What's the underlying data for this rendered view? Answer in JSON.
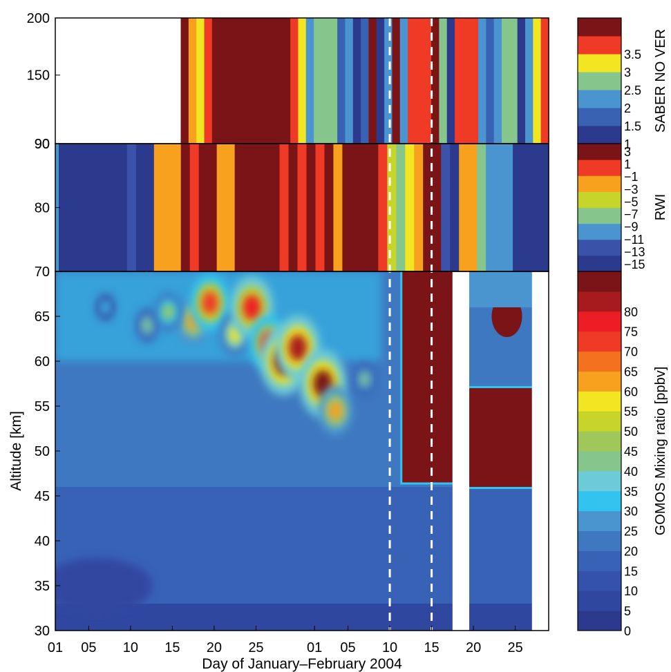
{
  "chart_data": [
    {
      "type": "heatmap",
      "panel": "top",
      "ylim": [
        90,
        200
      ],
      "yticks": [
        90,
        150,
        200
      ],
      "colorbar": {
        "title": "SABER NO VER",
        "range": [
          1,
          4
        ],
        "labels": [
          "1",
          "1.5",
          "2",
          "2.5",
          "3",
          "3.5"
        ],
        "colors": [
          "#2b3a8c",
          "#3a62b3",
          "#4a94d0",
          "#86c68c",
          "#f2e521",
          "#ef3b25",
          "#7b1416"
        ]
      },
      "data_start_day": 16,
      "stripe_colors": [
        "#7b1416",
        "#f7a11f",
        "#f2e521",
        "#ef3b25",
        "#7b1416",
        "#7b1416",
        "#7b1416",
        "#7b1416",
        "#7b1416",
        "#7b1416",
        "#7b1416",
        "#7b1416",
        "#7b1416",
        "#7b1416",
        "#ef3b25",
        "#f2e521",
        "#4a94d0",
        "#86c68c",
        "#86c68c",
        "#86c68c",
        "#3a62b3",
        "#4a94d0",
        "#2b3a8c",
        "#3a62b3",
        "#7b1416",
        "#2b3a8c",
        "#4a94d0",
        "#7b1416",
        "#4a94d0",
        "#ef3b25",
        "#ef3b25",
        "#ef3b25",
        "#7b1416",
        "#86c68c",
        "#2b3a8c",
        "#ef3b25",
        "#ef3b25",
        "#ef3b25",
        "#4a94d0",
        "#3a62b3",
        "#4a94d0",
        "#86c68c",
        "#86c68c",
        "#2b3a8c",
        "#4a94d0",
        "#f2e521",
        "#ef3b25"
      ]
    },
    {
      "type": "heatmap",
      "panel": "middle",
      "ylim": [
        70,
        90
      ],
      "yticks": [
        70,
        80,
        90
      ],
      "colorbar": {
        "title": "RWI",
        "range": [
          -15,
          3
        ],
        "labels": [
          "3",
          "1",
          "−1",
          "−3",
          "−5",
          "−7",
          "−9",
          "−11",
          "−13",
          "−15"
        ],
        "colors": [
          "#2b3a8c",
          "#3a52a8",
          "#4a94d0",
          "#86c68c",
          "#c7d52a",
          "#f7a11f",
          "#ef3b25",
          "#7b1416"
        ]
      },
      "stripe_colors": [
        "#2b3a8c",
        "#2b3a8c",
        "#2b3a8c",
        "#2b3a8c",
        "#2b3a8c",
        "#2b3a8c",
        "#2b3a8c",
        "#2b3a8c",
        "#3a52a8",
        "#2b3a8c",
        "#2b3a8c",
        "#f7a11f",
        "#f7a11f",
        "#f7a11f",
        "#7b1416",
        "#ef3b25",
        "#7b1416",
        "#7b1416",
        "#f7a11f",
        "#f7a11f",
        "#7b1416",
        "#7b1416",
        "#7b1416",
        "#7b1416",
        "#7b1416",
        "#ef3b25",
        "#7b1416",
        "#ef3b25",
        "#7b1416",
        "#ef3b25",
        "#7b1416",
        "#f7a11f",
        "#7b1416",
        "#7b1416",
        "#7b1416",
        "#7b1416",
        "#ef3b25",
        "#c7d52a",
        "#86c68c",
        "#f2e521",
        "#f7a11f",
        "#7b1416",
        "#7b1416",
        "#3a52a8",
        "#2b3a8c",
        "#f7a11f",
        "#f7a11f",
        "#86c68c",
        "#4a94d0",
        "#4a94d0",
        "#4a94d0",
        "#2b3a8c",
        "#2b3a8c",
        "#2b3a8c",
        "#2b3a8c"
      ]
    },
    {
      "type": "heatmap",
      "panel": "bottom",
      "xlabel": "Day of January–February 2004",
      "ylabel": "Altitude [km]",
      "xlim": [
        1,
        60
      ],
      "ylim": [
        30,
        70
      ],
      "xticks": [
        {
          "day": 1,
          "label": "01"
        },
        {
          "day": 5,
          "label": "05"
        },
        {
          "day": 10,
          "label": "10"
        },
        {
          "day": 15,
          "label": "15"
        },
        {
          "day": 20,
          "label": "20"
        },
        {
          "day": 25,
          "label": "25"
        },
        {
          "day": 32,
          "label": "01"
        },
        {
          "day": 36,
          "label": "05"
        },
        {
          "day": 41,
          "label": "10"
        },
        {
          "day": 46,
          "label": "15"
        },
        {
          "day": 51,
          "label": "20"
        },
        {
          "day": 56,
          "label": "25"
        }
      ],
      "yticks": [
        30,
        35,
        40,
        45,
        50,
        55,
        60,
        65,
        70
      ],
      "colorbar": {
        "title": "GOMOS Mixing ratio [ppbv]",
        "range": [
          0,
          85
        ],
        "labels": [
          "0",
          "5",
          "10",
          "15",
          "20",
          "25",
          "30",
          "35",
          "40",
          "45",
          "50",
          "55",
          "60",
          "65",
          "70",
          "75",
          "80"
        ],
        "colors": [
          "#2b3a8c",
          "#3047a0",
          "#3452ab",
          "#3862b6",
          "#3e78c0",
          "#4a94d0",
          "#33c3ef",
          "#6dcad7",
          "#86c68c",
          "#9fc75a",
          "#c7d52a",
          "#f2e521",
          "#f7a11f",
          "#f3711f",
          "#ef3b25",
          "#ee1c24",
          "#a71b1f",
          "#7b1416"
        ]
      },
      "data_gaps": [
        [
          48.5,
          50.5
        ],
        [
          58,
          60
        ]
      ],
      "hotspots": [
        {
          "day": 17.5,
          "alt": 64.5,
          "value": 60
        },
        {
          "day": 19.5,
          "alt": 66.5,
          "value": 72
        },
        {
          "day": 22.5,
          "alt": 63,
          "value": 55
        },
        {
          "day": 24.5,
          "alt": 66,
          "value": 78
        },
        {
          "day": 26.5,
          "alt": 62,
          "value": 70
        },
        {
          "day": 28.3,
          "alt": 60,
          "value": 85
        },
        {
          "day": 30.0,
          "alt": 61.5,
          "value": 82
        },
        {
          "day": 33.0,
          "alt": 57.5,
          "value": 85
        },
        {
          "day": 34.5,
          "alt": 54.5,
          "value": 62
        },
        {
          "day": 12,
          "alt": 64,
          "value": 42
        },
        {
          "day": 14.5,
          "alt": 65.5,
          "value": 48
        },
        {
          "day": 7,
          "alt": 66,
          "value": 33
        },
        {
          "day": 38,
          "alt": 58,
          "value": 40
        }
      ],
      "vertical_markers": [
        41,
        46
      ]
    }
  ]
}
